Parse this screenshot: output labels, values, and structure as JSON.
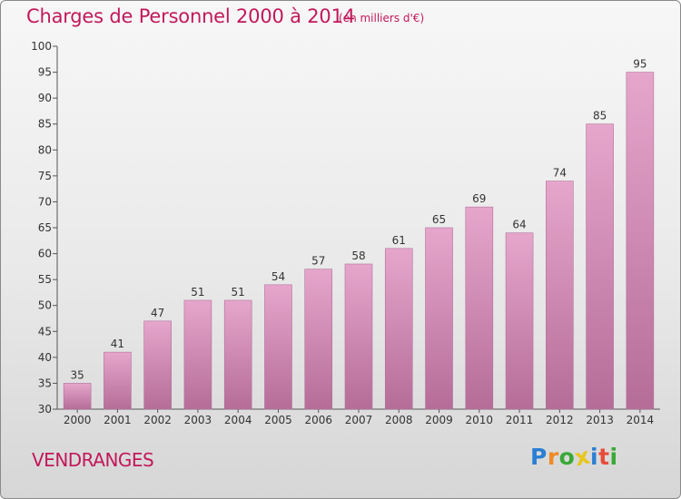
{
  "title": "Charges de Personnel 2000 à 2014",
  "subtitle": "(en milliers d'€)",
  "town": "VENDRANGES",
  "logo": {
    "letters": [
      "P",
      "r",
      "o",
      "x",
      "i",
      "t",
      "i"
    ],
    "colors": [
      "#2a7fd4",
      "#f08a24",
      "#39a935",
      "#e8c61c",
      "#2a7fd4",
      "#e74c3c",
      "#39a935"
    ]
  },
  "colors": {
    "bar_top": "#e6a6cc",
    "bar_bottom": "#b56d98",
    "title": "#c2185b"
  },
  "chart_data": {
    "type": "bar",
    "categories": [
      "2000",
      "2001",
      "2002",
      "2003",
      "2004",
      "2005",
      "2006",
      "2007",
      "2008",
      "2009",
      "2010",
      "2011",
      "2012",
      "2013",
      "2014"
    ],
    "values": [
      35,
      41,
      47,
      51,
      51,
      54,
      57,
      58,
      61,
      65,
      69,
      64,
      74,
      85,
      95
    ],
    "ylim": [
      30,
      100
    ],
    "yticks": [
      30,
      35,
      40,
      45,
      50,
      55,
      60,
      65,
      70,
      75,
      80,
      85,
      90,
      95,
      100
    ],
    "grid": false
  }
}
